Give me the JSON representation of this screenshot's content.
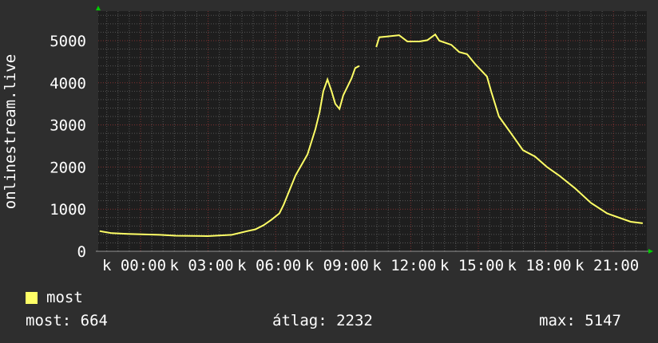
{
  "chart_data": {
    "type": "line",
    "title": "",
    "ylabel": "onlinestream.live",
    "xlabel": "",
    "ylim": [
      0,
      5700
    ],
    "yticks": [
      0,
      1000,
      2000,
      3000,
      4000,
      5000
    ],
    "xtick_labels": [
      "k 00:00",
      "k 03:00",
      "k 06:00",
      "k 09:00",
      "k 12:00",
      "k 15:00",
      "k 18:00",
      "k 21:00"
    ],
    "grid": true,
    "colors": {
      "background": "#2e2e2e",
      "plot": "#1e1e1e",
      "line": "#ffff66",
      "major_grid": "#803030",
      "minor_grid": "#555555",
      "arrow": "#00cc00"
    },
    "series": [
      {
        "name": "most",
        "points": [
          [
            "22:11",
            480
          ],
          [
            "22:43",
            430
          ],
          [
            "23:26",
            410
          ],
          [
            "00:51",
            390
          ],
          [
            "01:34",
            370
          ],
          [
            "02:59",
            360
          ],
          [
            "04:03",
            390
          ],
          [
            "04:45",
            480
          ],
          [
            "05:06",
            520
          ],
          [
            "05:28",
            620
          ],
          [
            "05:49",
            750
          ],
          [
            "06:10",
            900
          ],
          [
            "06:21",
            1100
          ],
          [
            "06:53",
            1800
          ],
          [
            "07:25",
            2300
          ],
          [
            "07:46",
            2900
          ],
          [
            "07:57",
            3300
          ],
          [
            "08:07",
            3800
          ],
          [
            "08:18",
            4080
          ],
          [
            "08:29",
            3800
          ],
          [
            "08:39",
            3500
          ],
          [
            "08:50",
            3380
          ],
          [
            "09:00",
            3700
          ],
          [
            "09:22",
            4100
          ],
          [
            "09:32",
            4350
          ],
          [
            "09:43",
            4400
          ],
          [
            "10:00",
            null
          ],
          [
            "10:28",
            4850
          ],
          [
            "10:36",
            5080
          ],
          [
            "10:57",
            5100
          ],
          [
            "11:29",
            5130
          ],
          [
            "11:51",
            4980
          ],
          [
            "12:23",
            4980
          ],
          [
            "12:44",
            5010
          ],
          [
            "13:05",
            5147
          ],
          [
            "13:16",
            5000
          ],
          [
            "13:48",
            4900
          ],
          [
            "14:09",
            4730
          ],
          [
            "14:30",
            4680
          ],
          [
            "14:51",
            4450
          ],
          [
            "15:23",
            4150
          ],
          [
            "15:34",
            3800
          ],
          [
            "15:55",
            3200
          ],
          [
            "16:27",
            2800
          ],
          [
            "16:59",
            2400
          ],
          [
            "17:31",
            2250
          ],
          [
            "18:03",
            2000
          ],
          [
            "18:35",
            1800
          ],
          [
            "19:17",
            1500
          ],
          [
            "20:00",
            1150
          ],
          [
            "20:43",
            900
          ],
          [
            "21:46",
            700
          ],
          [
            "22:18",
            664
          ]
        ]
      }
    ]
  },
  "legend": {
    "series_label": "most",
    "series_color": "#ffff66",
    "current": "most: 664",
    "average": "átlag: 2232",
    "max": "max: 5147"
  }
}
